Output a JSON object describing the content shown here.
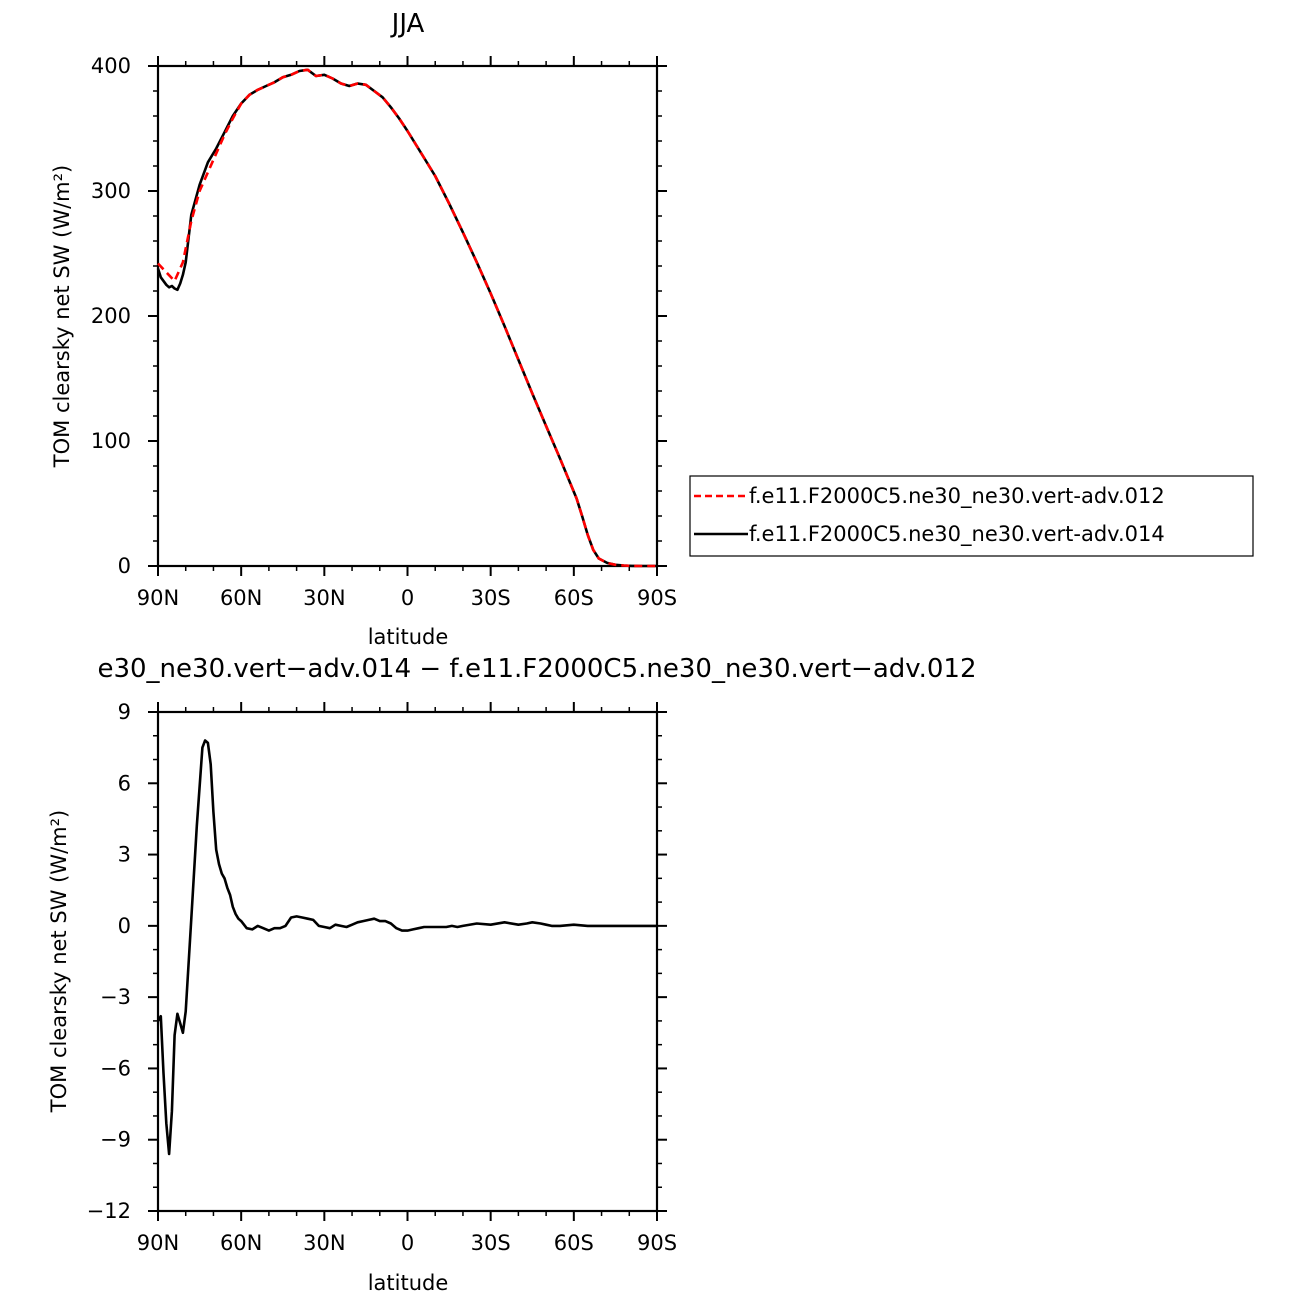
{
  "chart_data": [
    {
      "type": "line",
      "title": "JJA",
      "xlabel": "latitude",
      "ylabel": "TOM clearsky net SW (W/m²)",
      "xlim": [
        90,
        -90
      ],
      "ylim": [
        0,
        400
      ],
      "xticks": [
        90,
        60,
        30,
        0,
        -30,
        -60,
        -90
      ],
      "xtick_labels": [
        "90N",
        "60N",
        "30N",
        "0",
        "30S",
        "60S",
        "90S"
      ],
      "yticks": [
        0,
        100,
        200,
        300,
        400
      ],
      "ytick_labels": [
        "0",
        "100",
        "200",
        "300",
        "400"
      ],
      "legend_position": "right",
      "series": [
        {
          "name": "f.e11.F2000C5.ne30_ne30.vert-adv.012",
          "color": "#ff0000",
          "dash": "dashed",
          "x": [
            90,
            87,
            84,
            81,
            78,
            75,
            72,
            69,
            66,
            63,
            60,
            57,
            54,
            51,
            48,
            45,
            42,
            39,
            36,
            33,
            30,
            27,
            24,
            21,
            18,
            15,
            12,
            9,
            6,
            3,
            0,
            -5,
            -10,
            -15,
            -20,
            -25,
            -30,
            -35,
            -40,
            -45,
            -50,
            -55,
            -58,
            -61,
            -63,
            -65,
            -67,
            -69,
            -72,
            -75,
            -78,
            -81,
            -84,
            -90
          ],
          "y": [
            242,
            235,
            228,
            243,
            276,
            300,
            315,
            330,
            345,
            358,
            370,
            377,
            381,
            384,
            387,
            391,
            393,
            396,
            397,
            392,
            393,
            390,
            386,
            384,
            386,
            385,
            380,
            375,
            367,
            358,
            348,
            330,
            312,
            290,
            267,
            243,
            218,
            192,
            165,
            138,
            112,
            86,
            70,
            54,
            40,
            25,
            13,
            6,
            2.5,
            1,
            0.4,
            0.1,
            0,
            0
          ]
        },
        {
          "name": "f.e11.F2000C5.ne30_ne30.vert-adv.014",
          "color": "#000000",
          "dash": "solid",
          "x": [
            90,
            89,
            87,
            86,
            85,
            84,
            83,
            82,
            81,
            80,
            78,
            75,
            72,
            69,
            66,
            63,
            60,
            57,
            54,
            51,
            48,
            45,
            42,
            39,
            36,
            33,
            30,
            27,
            24,
            21,
            18,
            15,
            12,
            9,
            6,
            3,
            0,
            -5,
            -10,
            -15,
            -20,
            -25,
            -30,
            -35,
            -40,
            -45,
            -50,
            -55,
            -58,
            -61,
            -63,
            -65,
            -67,
            -69,
            -72,
            -75,
            -78,
            -81,
            -84,
            -90
          ],
          "y": [
            238,
            231,
            225,
            223,
            224,
            222,
            221,
            226,
            233,
            243,
            281,
            305,
            323,
            334,
            347,
            360,
            370,
            377,
            381,
            384,
            387,
            391,
            393,
            396,
            397,
            392,
            393,
            390,
            386,
            384,
            386,
            385,
            380,
            375,
            367,
            358,
            348,
            330,
            312,
            290,
            267,
            243,
            218,
            192,
            165,
            138,
            112,
            86,
            70,
            54,
            40,
            25,
            13,
            6,
            2.5,
            1,
            0.4,
            0.1,
            0,
            0
          ]
        }
      ]
    },
    {
      "type": "line",
      "title": "e30_ne30.vert−adv.014 − f.e11.F2000C5.ne30_ne30.vert−adv.012",
      "xlabel": "latitude",
      "ylabel": "TOM clearsky net SW (W/m²)",
      "xlim": [
        90,
        -90
      ],
      "ylim": [
        -12,
        9
      ],
      "xticks": [
        90,
        60,
        30,
        0,
        -30,
        -60,
        -90
      ],
      "xtick_labels": [
        "90N",
        "60N",
        "30N",
        "0",
        "30S",
        "60S",
        "90S"
      ],
      "yticks": [
        -12,
        -9,
        -6,
        -3,
        0,
        3,
        6,
        9
      ],
      "ytick_labels": [
        "−12",
        "−9",
        "−6",
        "−3",
        "0",
        "3",
        "6",
        "9"
      ],
      "series": [
        {
          "color": "#000000",
          "dash": "solid",
          "x": [
            90,
            89,
            88,
            87,
            86,
            85,
            84,
            83,
            82,
            81,
            80,
            78,
            76,
            74,
            73,
            72,
            71,
            70,
            69,
            68,
            67,
            66,
            65,
            64,
            63,
            62,
            61,
            60,
            58,
            56,
            54,
            52,
            50,
            48,
            46,
            44,
            42,
            40,
            38,
            36,
            34,
            32,
            30,
            28,
            26,
            24,
            22,
            20,
            18,
            16,
            14,
            12,
            10,
            8,
            6,
            4,
            2,
            0,
            -2,
            -4,
            -6,
            -8,
            -10,
            -12,
            -14,
            -16,
            -18,
            -20,
            -25,
            -30,
            -35,
            -40,
            -43,
            -45,
            -48,
            -50,
            -52,
            -55,
            -60,
            -65,
            -70,
            -75,
            -80,
            -85,
            -90
          ],
          "y": [
            -4.0,
            -3.8,
            -6.2,
            -8.3,
            -9.6,
            -7.8,
            -4.6,
            -3.7,
            -4.1,
            -4.5,
            -3.6,
            0.3,
            4.2,
            7.5,
            7.8,
            7.7,
            6.8,
            4.8,
            3.2,
            2.6,
            2.2,
            2.0,
            1.6,
            1.3,
            0.8,
            0.5,
            0.3,
            0.2,
            -0.1,
            -0.15,
            0.0,
            -0.1,
            -0.2,
            -0.1,
            -0.1,
            0.0,
            0.35,
            0.4,
            0.35,
            0.3,
            0.25,
            0.0,
            -0.05,
            -0.1,
            0.05,
            0.0,
            -0.05,
            0.05,
            0.15,
            0.2,
            0.25,
            0.3,
            0.2,
            0.2,
            0.1,
            -0.1,
            -0.2,
            -0.2,
            -0.15,
            -0.1,
            -0.05,
            -0.05,
            -0.05,
            -0.05,
            -0.05,
            0.0,
            -0.05,
            0.0,
            0.1,
            0.05,
            0.15,
            0.05,
            0.1,
            0.15,
            0.1,
            0.05,
            0.0,
            0.0,
            0.05,
            0.0,
            0.0,
            0.0,
            0.0,
            0.0,
            0.0
          ]
        }
      ]
    }
  ]
}
